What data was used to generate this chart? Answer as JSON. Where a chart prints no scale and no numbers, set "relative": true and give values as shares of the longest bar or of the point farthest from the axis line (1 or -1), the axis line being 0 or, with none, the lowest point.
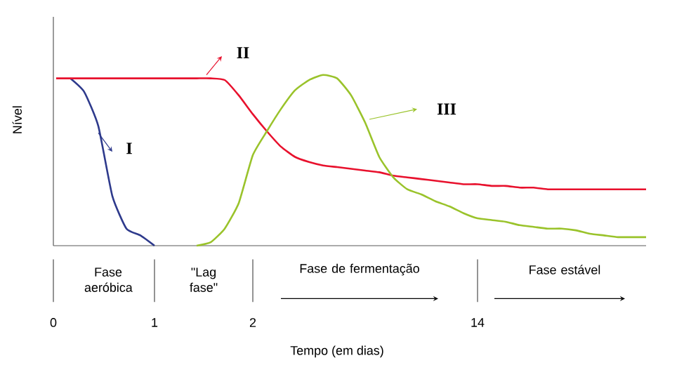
{
  "chart_data": {
    "type": "line",
    "relative": true,
    "ylabel": "Nível",
    "legend": "top",
    "categories": [
      null,
      null,
      null,
      null,
      null,
      null,
      null,
      null,
      null,
      null,
      null,
      null,
      null,
      null,
      null,
      null,
      null,
      null,
      null,
      null,
      null,
      null,
      null,
      null,
      null,
      null,
      null,
      null,
      null,
      null,
      null,
      null,
      null,
      null,
      null,
      null,
      null,
      null,
      null,
      null,
      null,
      null,
      null
    ],
    "series": [
      {
        "name": "I",
        "color": "#2e3a8c",
        "values": [
          null,
          0.98,
          0.9,
          0.7,
          0.29,
          0.1,
          0.06,
          0,
          null,
          null,
          null,
          null,
          null,
          null,
          null,
          null,
          null,
          null,
          null,
          null,
          null,
          null,
          null,
          null,
          null,
          null,
          null,
          null,
          null,
          null,
          null,
          null,
          null,
          null,
          null,
          null,
          null,
          null,
          null,
          null,
          null,
          null,
          null
        ]
      },
      {
        "name": "II",
        "color": "#e8112d",
        "values": [
          0.98,
          0.98,
          0.98,
          0.98,
          0.98,
          0.98,
          0.98,
          0.98,
          0.98,
          0.98,
          0.98,
          0.98,
          0.97,
          0.88,
          0.77,
          0.67,
          0.58,
          0.52,
          0.49,
          0.47,
          0.46,
          0.45,
          0.44,
          0.43,
          0.41,
          0.4,
          0.39,
          0.38,
          0.37,
          0.36,
          0.36,
          0.35,
          0.35,
          0.34,
          0.34,
          0.33,
          0.33,
          0.33,
          0.33,
          0.33,
          0.33,
          0.33,
          0.33
        ]
      },
      {
        "name": "III",
        "color": "#9ac32b",
        "values": [
          null,
          null,
          null,
          null,
          null,
          null,
          null,
          null,
          null,
          null,
          0,
          0.02,
          0.1,
          0.25,
          0.53,
          0.67,
          0.8,
          0.91,
          0.97,
          1.0,
          0.98,
          0.88,
          0.72,
          0.52,
          0.4,
          0.33,
          0.3,
          0.26,
          0.23,
          0.19,
          0.16,
          0.15,
          0.14,
          0.12,
          0.11,
          0.1,
          0.1,
          0.09,
          0.07,
          0.06,
          0.05,
          0.05,
          0.05
        ]
      }
    ],
    "annotations": [
      "Fase aeróbica",
      "\"Lag fase\"",
      "Fase de fermentação",
      "Fase estável",
      "0",
      "1",
      "2",
      "14",
      "Tempo (em dias)"
    ],
    "marker": "none",
    "line_style": "solid"
  }
}
